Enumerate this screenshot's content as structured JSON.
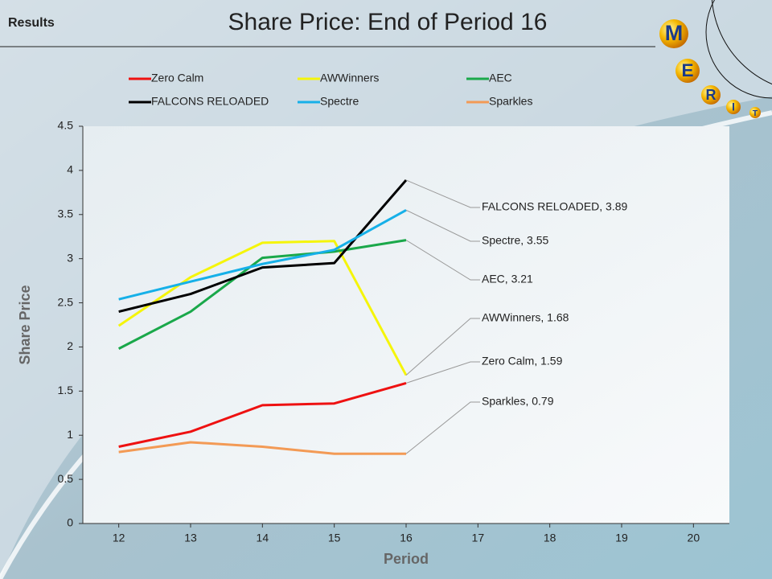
{
  "header": {
    "section": "Results",
    "logo": [
      "M",
      "E",
      "R",
      "I",
      "T"
    ]
  },
  "chart_data": {
    "type": "line",
    "title": "Share Price: End of Period 16",
    "xlabel": "Period",
    "ylabel": "Share Price",
    "x": [
      12,
      13,
      14,
      15,
      16,
      17,
      18,
      19,
      20
    ],
    "xlim": [
      11.5,
      20.5
    ],
    "xticks": [
      12,
      13,
      14,
      15,
      16,
      17,
      18,
      19,
      20
    ],
    "ylim": [
      0,
      4.5
    ],
    "yticks": [
      0,
      0.5,
      1,
      1.5,
      2,
      2.5,
      3,
      3.5,
      4,
      4.5
    ],
    "grid": false,
    "legend": "top",
    "series": [
      {
        "name": "Zero Calm",
        "color": "#ee1111",
        "values": [
          0.87,
          1.04,
          1.34,
          1.36,
          1.59,
          null,
          null,
          null,
          null
        ],
        "value_labels": [
          null,
          null,
          null,
          null,
          "Zero Calm, 1.59",
          null,
          null,
          null,
          null
        ]
      },
      {
        "name": "AWWinners",
        "color": "#f5f50a",
        "values": [
          2.24,
          2.79,
          3.18,
          3.2,
          1.68,
          null,
          null,
          null,
          null
        ],
        "value_labels": [
          null,
          null,
          null,
          null,
          "AWWinners, 1.68",
          null,
          null,
          null,
          null
        ]
      },
      {
        "name": "AEC",
        "color": "#1aa84a",
        "values": [
          1.98,
          2.4,
          3.01,
          3.08,
          3.21,
          null,
          null,
          null,
          null
        ],
        "value_labels": [
          null,
          null,
          null,
          null,
          "AEC, 3.21",
          null,
          null,
          null,
          null
        ]
      },
      {
        "name": "FALCONS RELOADED",
        "color": "#000000",
        "values": [
          2.4,
          2.6,
          2.9,
          2.95,
          3.89,
          null,
          null,
          null,
          null
        ],
        "value_labels": [
          null,
          null,
          null,
          null,
          "FALCONS RELOADED, 3.89",
          null,
          null,
          null,
          null
        ]
      },
      {
        "name": "Spectre",
        "color": "#16b0e8",
        "values": [
          2.54,
          2.74,
          2.94,
          3.1,
          3.55,
          null,
          null,
          null,
          null
        ],
        "value_labels": [
          null,
          null,
          null,
          null,
          "Spectre, 3.55",
          null,
          null,
          null,
          null
        ]
      },
      {
        "name": "Sparkles",
        "color": "#f39a55",
        "values": [
          0.81,
          0.92,
          0.87,
          0.79,
          0.79,
          null,
          null,
          null,
          null
        ],
        "value_labels": [
          null,
          null,
          null,
          null,
          "Sparkles, 0.79",
          null,
          null,
          null,
          null
        ]
      }
    ]
  }
}
